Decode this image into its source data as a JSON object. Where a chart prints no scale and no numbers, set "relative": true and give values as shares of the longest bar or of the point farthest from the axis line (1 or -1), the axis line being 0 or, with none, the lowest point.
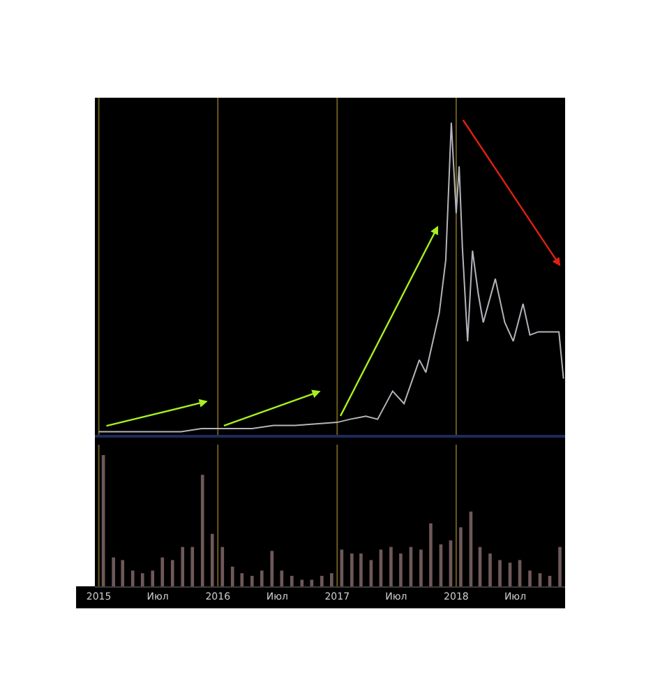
{
  "chart_data": [
    {
      "type": "line",
      "relative": true,
      "tick_labels": false,
      "marker": "none",
      "line_style": "solid",
      "x": [
        "2015-01-01",
        "2015-04-18",
        "2015-09-10",
        "2015-11-12",
        "2016-01-01",
        "2016-04-15",
        "2016-06-20",
        "2016-08-25",
        "2017-01-01",
        "2017-02-10",
        "2017-03-30",
        "2017-05-05",
        "2017-06-20",
        "2017-07-25",
        "2017-09-10",
        "2017-09-30",
        "2017-11-10",
        "2017-11-30",
        "2017-12-17",
        "2018-01-01",
        "2018-01-10",
        "2018-01-20",
        "2018-02-05",
        "2018-02-20",
        "2018-03-10",
        "2018-03-25",
        "2018-05-01",
        "2018-05-30",
        "2018-06-25",
        "2018-07-25",
        "2018-08-15",
        "2018-09-10",
        "2018-10-08",
        "2018-11-12",
        "2018-11-26"
      ],
      "xlim": [
        "2014-12-20",
        "2018-12-01"
      ],
      "series": [
        {
          "color": "#b4b4bc",
          "values": [
            0.01,
            0.01,
            0.01,
            0.02,
            0.02,
            0.02,
            0.03,
            0.03,
            0.04,
            0.05,
            0.06,
            0.05,
            0.14,
            0.1,
            0.24,
            0.2,
            0.39,
            0.56,
            1,
            0.71,
            0.86,
            0.6,
            0.3,
            0.59,
            0.45,
            0.36,
            0.5,
            0.36,
            0.3,
            0.42,
            0.32,
            0.33,
            0.33,
            0.33,
            0.18
          ]
        }
      ],
      "ref_lines": [
        {
          "axis": "x",
          "value": "2015-01-01",
          "color": "#6b5a1e"
        },
        {
          "axis": "x",
          "value": "2016-01-01",
          "color": "#6b5a1e"
        },
        {
          "axis": "x",
          "value": "2017-01-01",
          "color": "#6b5a1e"
        },
        {
          "axis": "x",
          "value": "2018-01-01",
          "color": "#6b5a1e"
        }
      ]
    },
    {
      "type": "bar",
      "relative": true,
      "tick_labels": "x",
      "x": [
        "2015-01-15",
        "2015-02-15",
        "2015-03-15",
        "2015-04-15",
        "2015-05-15",
        "2015-06-15",
        "2015-07-15",
        "2015-08-15",
        "2015-09-15",
        "2015-10-15",
        "2015-11-15",
        "2015-12-15",
        "2016-01-15",
        "2016-02-15",
        "2016-03-15",
        "2016-04-15",
        "2016-05-15",
        "2016-06-15",
        "2016-07-15",
        "2016-08-15",
        "2016-09-15",
        "2016-10-15",
        "2016-11-15",
        "2016-12-15",
        "2017-01-15",
        "2017-02-15",
        "2017-03-15",
        "2017-04-15",
        "2017-05-15",
        "2017-06-15",
        "2017-07-15",
        "2017-08-15",
        "2017-09-15",
        "2017-10-15",
        "2017-11-15",
        "2017-12-15",
        "2018-01-15",
        "2018-02-15",
        "2018-03-15",
        "2018-04-15",
        "2018-05-15",
        "2018-06-15",
        "2018-07-15",
        "2018-08-15",
        "2018-09-15",
        "2018-10-15",
        "2018-11-15"
      ],
      "xlim": [
        "2014-12-20",
        "2018-12-01"
      ],
      "xticks": [
        {
          "value": "2015-01-01",
          "label": "2015"
        },
        {
          "value": "2015-07-01",
          "label": "Июл"
        },
        {
          "value": "2016-01-01",
          "label": "2016"
        },
        {
          "value": "2016-07-01",
          "label": "Июл"
        },
        {
          "value": "2017-01-01",
          "label": "2017"
        },
        {
          "value": "2017-07-01",
          "label": "Июл"
        },
        {
          "value": "2018-01-01",
          "label": "2018"
        },
        {
          "value": "2018-07-01",
          "label": "Июл"
        }
      ],
      "series": [
        {
          "color": "#6e5858",
          "values": [
            1.0,
            0.22,
            0.2,
            0.12,
            0.1,
            0.12,
            0.22,
            0.2,
            0.3,
            0.3,
            0.85,
            0.4,
            0.3,
            0.15,
            0.1,
            0.08,
            0.12,
            0.27,
            0.12,
            0.08,
            0.05,
            0.05,
            0.08,
            0.1,
            0.28,
            0.25,
            0.25,
            0.2,
            0.28,
            0.3,
            0.25,
            0.3,
            0.28,
            0.48,
            0.32,
            0.35,
            0.45,
            0.57,
            0.3,
            0.25,
            0.2,
            0.18,
            0.2,
            0.12,
            0.1,
            0.08,
            0.3
          ]
        }
      ],
      "ref_lines": [
        {
          "axis": "x",
          "value": "2015-01-01",
          "color": "#6b5a1e"
        },
        {
          "axis": "x",
          "value": "2016-01-01",
          "color": "#6b5a1e"
        },
        {
          "axis": "x",
          "value": "2017-01-01",
          "color": "#6b5a1e"
        },
        {
          "axis": "x",
          "value": "2018-01-01",
          "color": "#6b5a1e"
        }
      ]
    }
  ]
}
